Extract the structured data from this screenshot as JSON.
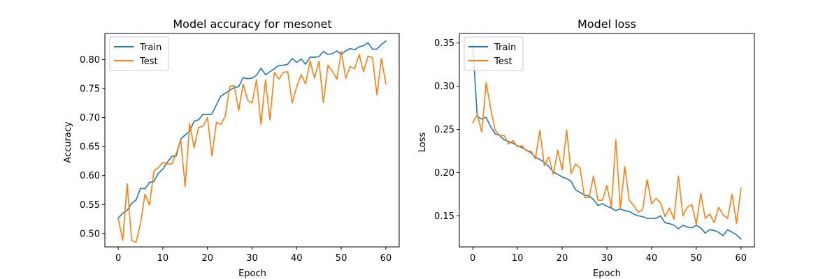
{
  "chart_data": [
    {
      "type": "line",
      "title": "Model accuracy for mesonet",
      "xlabel": "Epoch",
      "ylabel": "Accuracy",
      "xlim": [
        -3,
        63
      ],
      "ylim": [
        0.477,
        0.845
      ],
      "xticks": [
        0,
        10,
        20,
        30,
        40,
        50,
        60
      ],
      "yticks": [
        0.5,
        0.55,
        0.6,
        0.65,
        0.7,
        0.75,
        0.8
      ],
      "xtick_labels": [
        "0",
        "10",
        "20",
        "30",
        "40",
        "50",
        "60"
      ],
      "ytick_labels": [
        "0.50",
        "0.55",
        "0.60",
        "0.65",
        "0.70",
        "0.75",
        "0.80"
      ],
      "grid": false,
      "legend_position": "top-left",
      "series": [
        {
          "name": "Train",
          "color": "#1f77b4",
          "values": [
            0.527,
            0.535,
            0.54,
            0.552,
            0.558,
            0.578,
            0.577,
            0.588,
            0.59,
            0.604,
            0.611,
            0.623,
            0.633,
            0.634,
            0.663,
            0.67,
            0.676,
            0.694,
            0.696,
            0.706,
            0.705,
            0.706,
            0.722,
            0.737,
            0.742,
            0.747,
            0.752,
            0.753,
            0.769,
            0.767,
            0.768,
            0.773,
            0.785,
            0.774,
            0.779,
            0.784,
            0.79,
            0.79,
            0.792,
            0.802,
            0.795,
            0.801,
            0.792,
            0.804,
            0.804,
            0.805,
            0.814,
            0.809,
            0.81,
            0.815,
            0.809,
            0.815,
            0.819,
            0.817,
            0.822,
            0.824,
            0.829,
            0.818,
            0.818,
            0.826,
            0.832
          ]
        },
        {
          "name": "Test",
          "color": "#ff7f0e",
          "values": [
            0.526,
            0.488,
            0.586,
            0.488,
            0.485,
            0.518,
            0.568,
            0.549,
            0.608,
            0.614,
            0.623,
            0.62,
            0.62,
            0.638,
            0.662,
            0.581,
            0.69,
            0.648,
            0.683,
            0.685,
            0.7,
            0.634,
            0.692,
            0.688,
            0.703,
            0.754,
            0.755,
            0.712,
            0.758,
            0.73,
            0.725,
            0.765,
            0.688,
            0.765,
            0.696,
            0.778,
            0.766,
            0.778,
            0.779,
            0.725,
            0.753,
            0.774,
            0.758,
            0.798,
            0.768,
            0.797,
            0.726,
            0.79,
            0.78,
            0.766,
            0.814,
            0.768,
            0.788,
            0.784,
            0.809,
            0.779,
            0.806,
            0.803,
            0.739,
            0.802,
            0.758
          ]
        }
      ]
    },
    {
      "type": "line",
      "title": "Model loss",
      "xlabel": "Epoch",
      "ylabel": "Loss",
      "xlim": [
        -3,
        63
      ],
      "ylim": [
        0.114,
        0.361
      ],
      "xticks": [
        0,
        10,
        20,
        30,
        40,
        50,
        60
      ],
      "yticks": [
        0.15,
        0.2,
        0.25,
        0.3,
        0.35
      ],
      "xtick_labels": [
        "0",
        "10",
        "20",
        "30",
        "40",
        "50",
        "60"
      ],
      "ytick_labels": [
        "0.15",
        "0.20",
        "0.25",
        "0.30",
        "0.35"
      ],
      "grid": false,
      "legend_position": "top-left",
      "series": [
        {
          "name": "Train",
          "color": "#1f77b4",
          "values": [
            0.348,
            0.265,
            0.262,
            0.264,
            0.253,
            0.245,
            0.243,
            0.238,
            0.236,
            0.234,
            0.231,
            0.229,
            0.226,
            0.223,
            0.218,
            0.215,
            0.212,
            0.207,
            0.201,
            0.198,
            0.195,
            0.193,
            0.19,
            0.18,
            0.177,
            0.174,
            0.173,
            0.169,
            0.162,
            0.164,
            0.161,
            0.159,
            0.156,
            0.158,
            0.156,
            0.155,
            0.152,
            0.15,
            0.149,
            0.147,
            0.147,
            0.147,
            0.15,
            0.142,
            0.141,
            0.139,
            0.135,
            0.139,
            0.137,
            0.136,
            0.139,
            0.136,
            0.13,
            0.134,
            0.133,
            0.131,
            0.127,
            0.134,
            0.131,
            0.128,
            0.123
          ]
        },
        {
          "name": "Test",
          "color": "#ff7f0e",
          "values": [
            0.258,
            0.267,
            0.247,
            0.304,
            0.274,
            0.249,
            0.243,
            0.243,
            0.233,
            0.237,
            0.23,
            0.231,
            0.225,
            0.225,
            0.216,
            0.249,
            0.208,
            0.218,
            0.198,
            0.226,
            0.203,
            0.249,
            0.199,
            0.21,
            0.205,
            0.171,
            0.171,
            0.196,
            0.168,
            0.168,
            0.185,
            0.16,
            0.238,
            0.158,
            0.207,
            0.168,
            0.162,
            0.154,
            0.157,
            0.192,
            0.164,
            0.17,
            0.165,
            0.149,
            0.159,
            0.146,
            0.196,
            0.15,
            0.16,
            0.163,
            0.14,
            0.176,
            0.147,
            0.152,
            0.142,
            0.16,
            0.151,
            0.147,
            0.175,
            0.141,
            0.182
          ]
        }
      ]
    }
  ]
}
